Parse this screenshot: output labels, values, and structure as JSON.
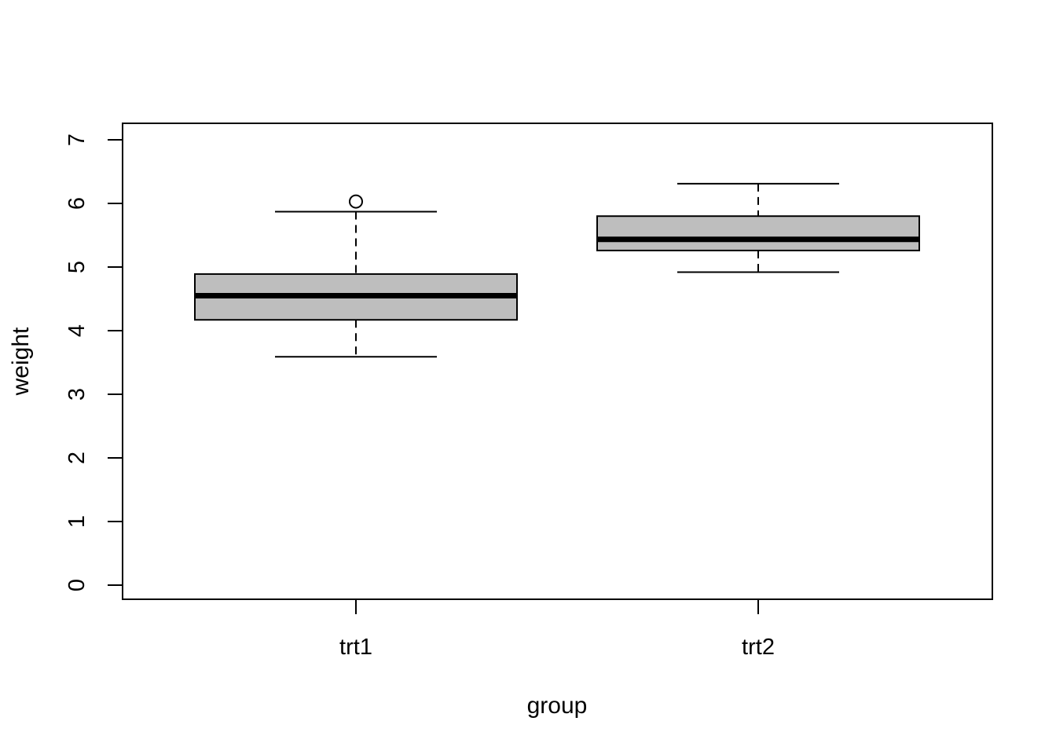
{
  "chart_data": {
    "type": "boxplot",
    "xlabel": "group",
    "ylabel": "weight",
    "categories": [
      "trt1",
      "trt2"
    ],
    "y_ticks": [
      0,
      1,
      2,
      3,
      4,
      5,
      6,
      7
    ],
    "ylim": [
      -0.25,
      7.3
    ],
    "grid": false,
    "legend": "none",
    "series": [
      {
        "name": "trt1",
        "whisker_low": 3.59,
        "q1": 4.17,
        "median": 4.55,
        "q3": 4.89,
        "whisker_high": 5.87,
        "outliers": [
          6.03
        ]
      },
      {
        "name": "trt2",
        "whisker_low": 4.92,
        "q1": 5.26,
        "median": 5.435,
        "q3": 5.8,
        "whisker_high": 6.31,
        "outliers": []
      }
    ],
    "colors": {
      "box_fill": "#bebebe",
      "stroke": "#000000",
      "background": "#ffffff"
    }
  }
}
